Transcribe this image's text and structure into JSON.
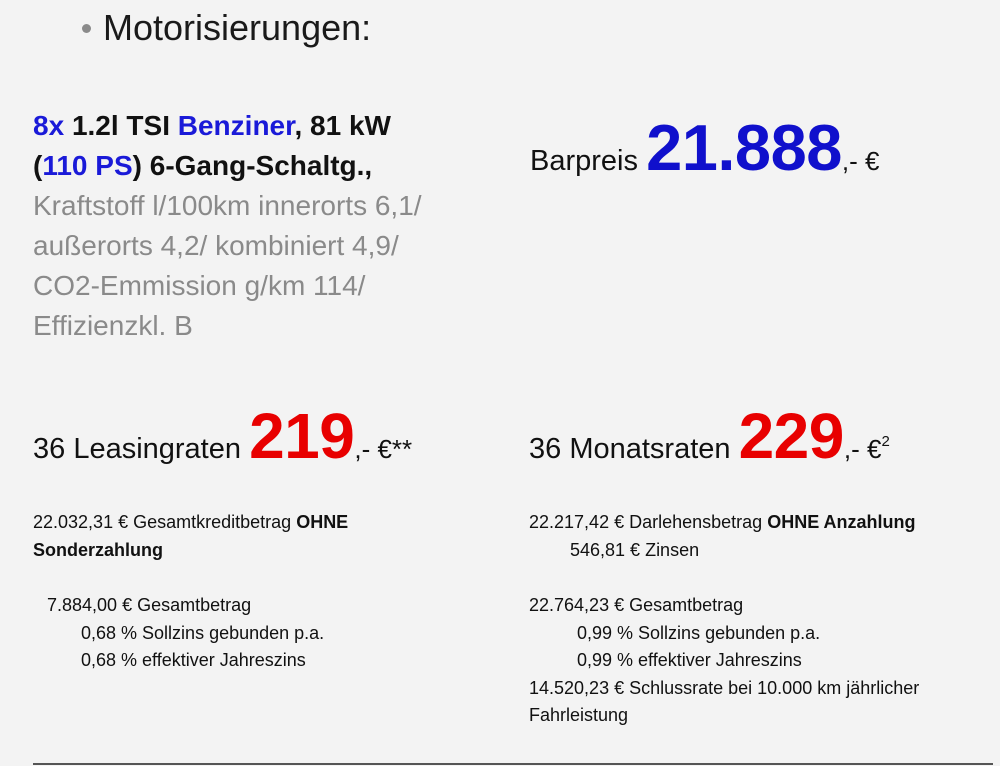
{
  "heading": "Motorisierungen:",
  "engine": {
    "count": "8x",
    "model": "1.2l TSI",
    "fuel": "Benziner",
    "power_kw": ", 81 kW",
    "paren_open": "(",
    "power_ps": "110 PS",
    "gearbox": ") 6-Gang-Schaltg.,",
    "consumption": [
      "Kraftstoff l/100km innerorts 6,1/",
      "außerorts 4,2/ kombiniert 4,9/",
      "CO2-Emmission g/km 114/",
      "Effizienzkl. B"
    ]
  },
  "barpreis": {
    "label": "Barpreis",
    "amount": "21.888",
    "suffix": ",- €"
  },
  "leasing": {
    "label": "36 Leasingraten",
    "amount": "219",
    "suffix": ",- €",
    "mark": "**"
  },
  "monat": {
    "label": "36 Monatsraten",
    "amount": "229",
    "suffix": ",- €",
    "mark": "2"
  },
  "left_details": {
    "line1_text": "22.032,31 € Gesamtkreditbetrag",
    "line1_bold": "OHNE",
    "line2_bold": "Sonderzahlung",
    "gesamtbetrag": "7.884,00 € Gesamtbetrag",
    "sollzins": "0,68 % Sollzins gebunden p.a.",
    "effzins": "0,68 % effektiver Jahreszins"
  },
  "right_details": {
    "line1_text": "22.217,42 € Darlehensbetrag",
    "line1_bold": "OHNE Anzahlung",
    "zinsen": "546,81 €  Zinsen",
    "gesamtbetrag": "22.764,23 € Gesamtbetrag",
    "sollzins": "0,99 % Sollzins gebunden p.a.",
    "effzins": "0,99 % effektiver Jahreszins",
    "schlussrate": "14.520,23 € Schlussrate bei 10.000 km jährlicher",
    "fahrleistung": "Fahrleistung"
  },
  "colors": {
    "blue": "#1010cc",
    "red": "#e80000",
    "grey": "#8a8a8a",
    "background": "#f3f3f3"
  }
}
